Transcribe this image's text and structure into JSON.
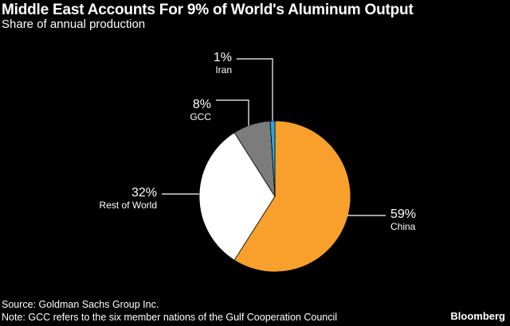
{
  "header": {
    "title": "Middle East Accounts For 9% of World's Aluminum Output",
    "subtitle": "Share of annual production"
  },
  "footer": {
    "source": "Source: Goldman Sachs Group Inc.",
    "note": "Note: GCC refers to the six member nations of the Gulf Cooperation Council",
    "brand": "Bloomberg"
  },
  "chart_data": {
    "type": "pie",
    "title": "Middle East Accounts For 9% of World's Aluminum Output",
    "subtitle": "Share of annual production",
    "start": "12 o'clock",
    "direction": "clockwise",
    "slices": [
      {
        "name": "China",
        "value": 59,
        "label": "59%",
        "color": "#f8a02b"
      },
      {
        "name": "Rest of World",
        "value": 32,
        "label": "32%",
        "color": "#ffffff"
      },
      {
        "name": "GCC",
        "value": 8,
        "label": "8%",
        "color": "#7c7c7c"
      },
      {
        "name": "Iran",
        "value": 1,
        "label": "1%",
        "color": "#2aa7e0"
      }
    ]
  }
}
